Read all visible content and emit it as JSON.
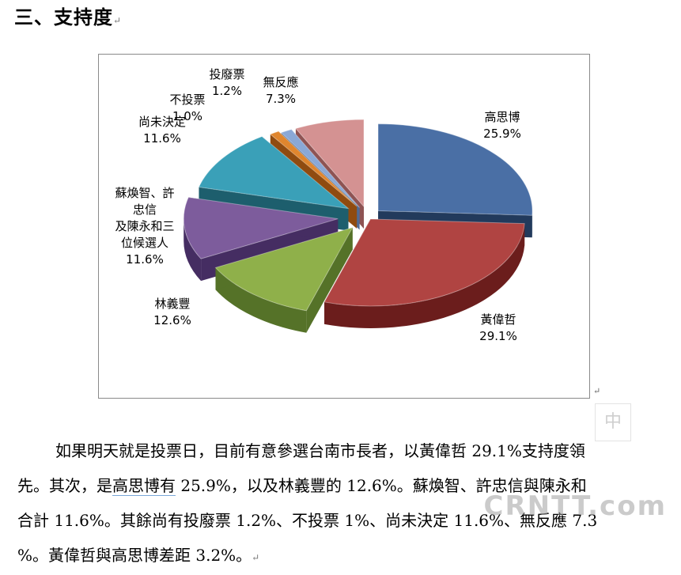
{
  "heading": "三、支持度",
  "chart_data": {
    "type": "pie",
    "slices": [
      {
        "label": "高思博",
        "value": 25.9,
        "color": "#4a6fa5",
        "dark": "#223a5c"
      },
      {
        "label": "黃偉哲",
        "value": 29.1,
        "color": "#b04442",
        "dark": "#6b1d1c"
      },
      {
        "label": "林義豐",
        "value": 12.6,
        "color": "#8fb04a",
        "dark": "#557228"
      },
      {
        "label": "蘇煥智、許忠信及陳永和三位候選人",
        "value": 11.6,
        "color": "#7d5c9c",
        "dark": "#452d62"
      },
      {
        "label": "尚未決定",
        "value": 11.6,
        "color": "#3aa0b8",
        "dark": "#1d5e6d"
      },
      {
        "label": "不投票",
        "value": 1.0,
        "color": "#e0862e",
        "dark": "#8f4b10"
      },
      {
        "label": "投廢票",
        "value": 1.2,
        "color": "#8aa8d6",
        "dark": "#4e6a94"
      },
      {
        "label": "無反應",
        "value": 7.3,
        "color": "#d49292",
        "dark": "#8e5353"
      }
    ],
    "labels": [
      {
        "lines": [
          "高思博",
          "25.9%"
        ]
      },
      {
        "lines": [
          "黃偉哲",
          "29.1%"
        ]
      },
      {
        "lines": [
          "林義豐",
          "12.6%"
        ]
      },
      {
        "lines": [
          "蘇煥智、許",
          "忠信",
          "及陳永和三",
          "位候選人",
          "11.6%"
        ]
      },
      {
        "lines": [
          "尚未決定",
          "11.6%"
        ]
      },
      {
        "lines": [
          "不投票",
          "1.0%"
        ]
      },
      {
        "lines": [
          "投廢票",
          "1.2%"
        ]
      },
      {
        "lines": [
          "無反應",
          "7.3%"
        ]
      }
    ]
  },
  "paragraph": {
    "line1": "如果明天就是投票日，目前有意參選台南市長者，以黃偉哲 29.1%支持度領",
    "line2_a": "先。其次，是",
    "line2_u": "高思博有",
    "line2_b": " 25.9%，以及林義豐的 12.6%。蘇煥智、許忠信與陳永和",
    "line3": "合計 11.6%。其餘尚有投廢票 1.2%、不投票 1%、尚未決定 11.6%、無反應 7.3",
    "line4": "%。黃偉哲與高思博差距 3.2%。"
  },
  "watermark": {
    "box_char": "中",
    "text": "CRNTT.com"
  }
}
